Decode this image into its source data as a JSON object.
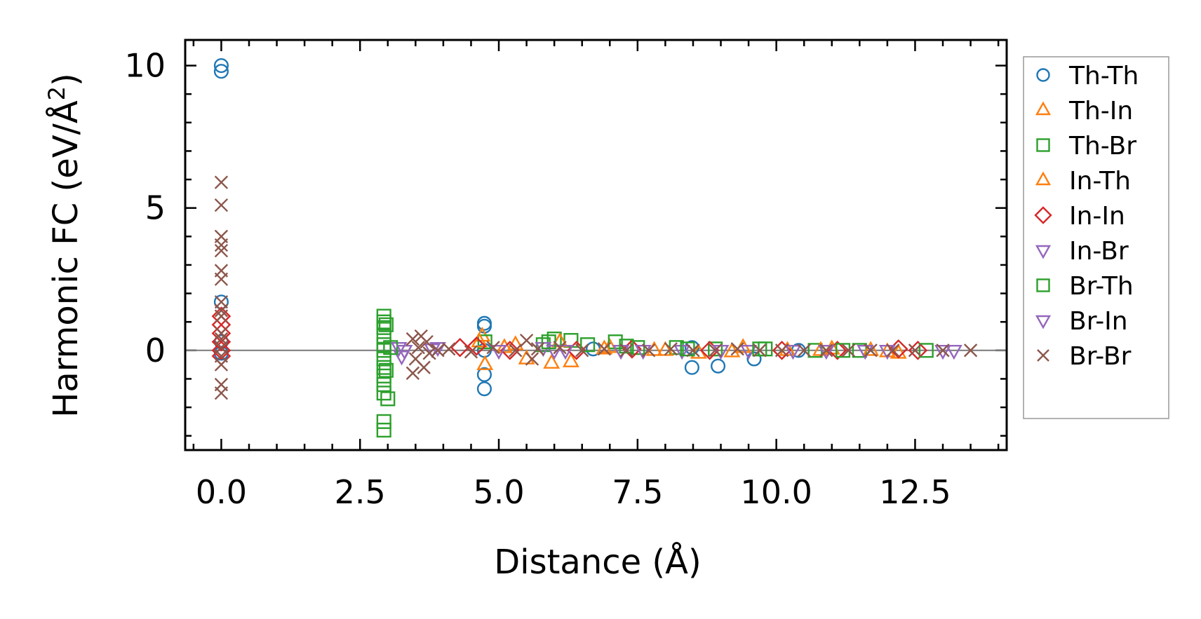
{
  "chart_data": {
    "type": "scatter",
    "xlabel": "Distance (Å)",
    "ylabel_main": "Harmonic FC (eV/Å",
    "ylabel_sup": "2",
    "ylabel_close": ")",
    "xlim": [
      -0.65,
      14.15
    ],
    "ylim": [
      -3.5,
      10.9
    ],
    "x_ticks": [
      0.0,
      2.5,
      5.0,
      7.5,
      10.0,
      12.5
    ],
    "x_tick_labels": [
      "0.0",
      "2.5",
      "5.0",
      "7.5",
      "10.0",
      "12.5"
    ],
    "y_ticks": [
      0,
      5,
      10
    ],
    "y_tick_labels": [
      "0",
      "5",
      "10"
    ],
    "zero_line": true,
    "grid": false,
    "legend_position": "outside-right",
    "series": [
      {
        "name": "Th-Th",
        "marker": "circle",
        "color": "#1f77b4",
        "points": [
          [
            0,
            10.0
          ],
          [
            0,
            9.8
          ],
          [
            0,
            1.7
          ],
          [
            0,
            0.3
          ],
          [
            0,
            -0.1
          ],
          [
            4.74,
            0.95
          ],
          [
            4.74,
            0.85
          ],
          [
            4.74,
            -0.85
          ],
          [
            4.74,
            -1.35
          ],
          [
            4.74,
            0.0
          ],
          [
            8.48,
            0.1
          ],
          [
            8.48,
            -0.6
          ],
          [
            8.95,
            -0.55
          ],
          [
            9.6,
            -0.3
          ],
          [
            6.7,
            0.05
          ],
          [
            10.4,
            0.0
          ]
        ]
      },
      {
        "name": "Th-In",
        "marker": "triangle-up",
        "color": "#ff7f0e",
        "points": [
          [
            4.7,
            0.5
          ],
          [
            4.75,
            -0.5
          ],
          [
            5.3,
            0.2
          ],
          [
            5.5,
            -0.3
          ],
          [
            5.95,
            -0.45
          ],
          [
            6.3,
            -0.4
          ],
          [
            7.0,
            0.1
          ],
          [
            7.8,
            0.0
          ],
          [
            8.6,
            -0.1
          ],
          [
            9.4,
            0.1
          ],
          [
            10.2,
            0.0
          ],
          [
            11.0,
            0.05
          ],
          [
            12.0,
            -0.05
          ]
        ]
      },
      {
        "name": "Th-Br",
        "marker": "square",
        "color": "#2ca02c",
        "points": [
          [
            2.93,
            1.2
          ],
          [
            2.93,
            1.0
          ],
          [
            2.93,
            0.8
          ],
          [
            2.93,
            0.5
          ],
          [
            2.93,
            0.2
          ],
          [
            2.93,
            0.0
          ],
          [
            2.93,
            -0.3
          ],
          [
            2.93,
            -0.6
          ],
          [
            2.93,
            -0.9
          ],
          [
            2.93,
            -1.2
          ],
          [
            2.93,
            -1.5
          ],
          [
            2.93,
            -2.5
          ],
          [
            2.93,
            -2.8
          ],
          [
            3.0,
            -1.7
          ],
          [
            4.75,
            0.3
          ],
          [
            5.8,
            0.2
          ],
          [
            6.0,
            0.4
          ],
          [
            6.3,
            0.35
          ],
          [
            7.1,
            0.3
          ],
          [
            7.5,
            0.1
          ],
          [
            8.2,
            0.1
          ],
          [
            8.9,
            0.05
          ],
          [
            9.8,
            0.05
          ],
          [
            10.7,
            0.0
          ],
          [
            11.5,
            0.0
          ]
        ]
      },
      {
        "name": "In-Th",
        "marker": "triangle-up",
        "color": "#ff7f0e",
        "points": [
          [
            4.65,
            0.3
          ],
          [
            5.1,
            0.1
          ],
          [
            6.1,
            0.3
          ],
          [
            6.9,
            0.05
          ],
          [
            8.0,
            0.0
          ],
          [
            9.2,
            -0.05
          ],
          [
            10.8,
            0.0
          ],
          [
            11.7,
            0.0
          ],
          [
            12.2,
            -0.1
          ]
        ]
      },
      {
        "name": "In-In",
        "marker": "diamond",
        "color": "#d62728",
        "points": [
          [
            0,
            1.2
          ],
          [
            0,
            0.9
          ],
          [
            0,
            0.6
          ],
          [
            0,
            0.3
          ],
          [
            0,
            0.0
          ],
          [
            0,
            -0.2
          ],
          [
            4.3,
            0.1
          ],
          [
            4.6,
            0.15
          ],
          [
            5.2,
            0.0
          ],
          [
            6.4,
            0.0
          ],
          [
            7.4,
            0.05
          ],
          [
            8.8,
            0.0
          ],
          [
            10.1,
            0.0
          ],
          [
            11.1,
            0.0
          ],
          [
            12.2,
            0.05
          ],
          [
            12.55,
            0.0
          ]
        ]
      },
      {
        "name": "In-Br",
        "marker": "triangle-down",
        "color": "#9467bd",
        "points": [
          [
            3.2,
            0.1
          ],
          [
            3.25,
            -0.2
          ],
          [
            3.8,
            0.05
          ],
          [
            5.8,
            0.1
          ],
          [
            6.0,
            0.0
          ],
          [
            7.2,
            0.0
          ],
          [
            8.3,
            0.0
          ],
          [
            9.5,
            0.0
          ],
          [
            10.9,
            0.0
          ],
          [
            12.0,
            0.0
          ],
          [
            13.0,
            0.0
          ]
        ]
      },
      {
        "name": "Br-Th",
        "marker": "square",
        "color": "#2ca02c",
        "points": [
          [
            2.97,
            0.9
          ],
          [
            2.97,
            -0.7
          ],
          [
            3.05,
            0.1
          ],
          [
            5.9,
            0.3
          ],
          [
            6.6,
            0.2
          ],
          [
            7.3,
            0.15
          ],
          [
            8.4,
            0.05
          ],
          [
            9.7,
            0.05
          ],
          [
            11.2,
            0.0
          ],
          [
            12.7,
            0.0
          ]
        ]
      },
      {
        "name": "Br-In",
        "marker": "triangle-down",
        "color": "#9467bd",
        "points": [
          [
            3.3,
            0.0
          ],
          [
            3.9,
            0.1
          ],
          [
            5.0,
            0.0
          ],
          [
            6.2,
            0.0
          ],
          [
            7.6,
            0.0
          ],
          [
            9.0,
            0.0
          ],
          [
            10.3,
            0.0
          ],
          [
            11.6,
            0.0
          ],
          [
            13.2,
            0.0
          ]
        ]
      },
      {
        "name": "Br-Br",
        "marker": "x",
        "color": "#8c564b",
        "points": [
          [
            0,
            5.9
          ],
          [
            0,
            5.1
          ],
          [
            0,
            4.0
          ],
          [
            0,
            3.7
          ],
          [
            0,
            3.5
          ],
          [
            0,
            2.8
          ],
          [
            0,
            2.5
          ],
          [
            0,
            1.7
          ],
          [
            0,
            1.4
          ],
          [
            0,
            1.2
          ],
          [
            0,
            0.6
          ],
          [
            0,
            0.4
          ],
          [
            0,
            0.1
          ],
          [
            0,
            -0.2
          ],
          [
            0,
            -0.5
          ],
          [
            0,
            -1.2
          ],
          [
            0,
            -1.5
          ],
          [
            3.45,
            0.4
          ],
          [
            3.45,
            -0.8
          ],
          [
            3.5,
            -0.3
          ],
          [
            3.55,
            0.1
          ],
          [
            3.6,
            0.5
          ],
          [
            3.65,
            -0.6
          ],
          [
            3.7,
            0.3
          ],
          [
            3.75,
            -0.1
          ],
          [
            3.9,
            0.0
          ],
          [
            4.1,
            0.05
          ],
          [
            4.5,
            -0.05
          ],
          [
            4.9,
            0.1
          ],
          [
            5.3,
            0.0
          ],
          [
            5.5,
            0.35
          ],
          [
            5.6,
            -0.3
          ],
          [
            5.7,
            0.05
          ],
          [
            6.1,
            0.1
          ],
          [
            6.5,
            0.0
          ],
          [
            6.9,
            0.05
          ],
          [
            7.3,
            0.0
          ],
          [
            7.7,
            0.0
          ],
          [
            8.1,
            0.05
          ],
          [
            8.5,
            0.0
          ],
          [
            8.9,
            0.0
          ],
          [
            9.3,
            0.05
          ],
          [
            9.7,
            0.0
          ],
          [
            10.1,
            0.0
          ],
          [
            10.5,
            0.0
          ],
          [
            10.9,
            0.0
          ],
          [
            11.3,
            0.0
          ],
          [
            11.7,
            0.0
          ],
          [
            12.1,
            0.0
          ],
          [
            12.5,
            0.0
          ],
          [
            13.0,
            0.0
          ],
          [
            13.5,
            0.0
          ]
        ]
      }
    ]
  }
}
